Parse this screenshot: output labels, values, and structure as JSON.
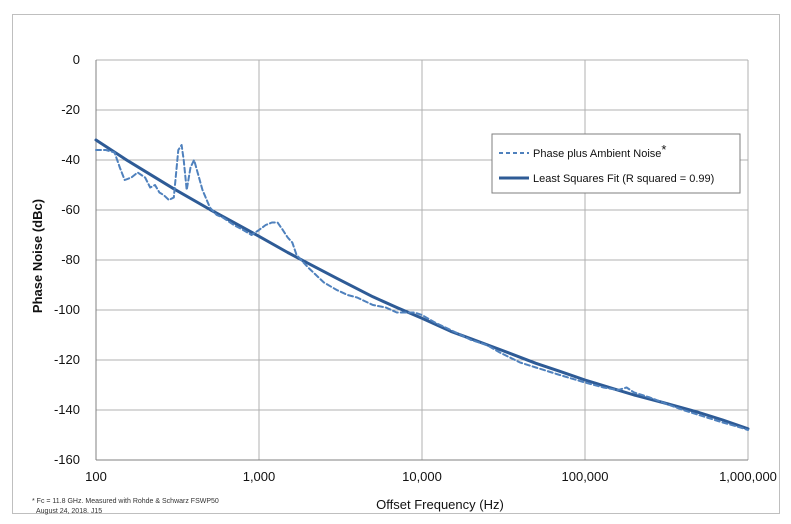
{
  "chart_data": {
    "type": "line",
    "xlabel": "Offset Frequency (Hz)",
    "ylabel": "Phase Noise (dBc)",
    "x_scale": "log",
    "xlim": [
      100,
      1000000
    ],
    "ylim": [
      -160,
      0
    ],
    "x_ticks": [
      {
        "value": 100,
        "label": "100"
      },
      {
        "value": 1000,
        "label": "1,000"
      },
      {
        "value": 10000,
        "label": "10,000"
      },
      {
        "value": 100000,
        "label": "100,000"
      },
      {
        "value": 1000000,
        "label": "1,000,000"
      }
    ],
    "y_ticks": [
      {
        "value": 0,
        "label": "0"
      },
      {
        "value": -20,
        "label": "-20"
      },
      {
        "value": -40,
        "label": "-40"
      },
      {
        "value": -60,
        "label": "-60"
      },
      {
        "value": -80,
        "label": "-80"
      },
      {
        "value": -100,
        "label": "-100"
      },
      {
        "value": -120,
        "label": "-120"
      },
      {
        "value": -140,
        "label": "-140"
      },
      {
        "value": -160,
        "label": "-160"
      }
    ],
    "grid": true,
    "legend_position": "right",
    "series": [
      {
        "name": "Phase plus Ambient Noise",
        "name_suffix": "*",
        "style": "dashed",
        "color": "#4f81bd",
        "x": [
          100,
          115,
          130,
          140,
          150,
          165,
          180,
          200,
          215,
          230,
          245,
          260,
          280,
          300,
          320,
          335,
          345,
          360,
          380,
          400,
          420,
          450,
          500,
          550,
          600,
          700,
          800,
          900,
          1000,
          1100,
          1200,
          1300,
          1400,
          1500,
          1600,
          1700,
          2000,
          2500,
          3000,
          3500,
          4000,
          5000,
          6000,
          7000,
          8000,
          9000,
          10000,
          12000,
          15000,
          20000,
          25000,
          30000,
          40000,
          50000,
          70000,
          100000,
          130000,
          160000,
          180000,
          200000,
          250000,
          300000,
          400000,
          500000,
          700000,
          900000,
          1000000
        ],
        "y": [
          -36,
          -36,
          -37,
          -43,
          -48,
          -47,
          -45,
          -47,
          -51,
          -50,
          -53,
          -54,
          -56,
          -55,
          -36,
          -34,
          -40,
          -52,
          -43,
          -40,
          -45,
          -52,
          -59,
          -62,
          -63,
          -66,
          -68,
          -70,
          -68,
          -66,
          -65,
          -65,
          -68,
          -71,
          -73,
          -78,
          -83,
          -89,
          -92,
          -94,
          -95,
          -98,
          -99,
          -101,
          -101,
          -101,
          -102,
          -105,
          -108,
          -112,
          -114,
          -117,
          -121,
          -123,
          -126,
          -129,
          -131,
          -132,
          -131,
          -133,
          -135,
          -137,
          -140,
          -142,
          -145,
          -147,
          -148
        ]
      },
      {
        "name": "Least Squares Fit (R squared = 0.99)",
        "style": "solid",
        "color": "#2e5b96",
        "x": [
          100,
          150,
          200,
          300,
          500,
          700,
          1000,
          1500,
          2000,
          3000,
          5000,
          7000,
          10000,
          15000,
          20000,
          30000,
          50000,
          70000,
          100000,
          150000,
          200000,
          300000,
          500000,
          700000,
          1000000
        ],
        "y": [
          -32,
          -39.5,
          -44.5,
          -51.5,
          -59.8,
          -65,
          -70.5,
          -77,
          -81.3,
          -87.3,
          -94.7,
          -99,
          -103.3,
          -108.5,
          -111.5,
          -115.8,
          -121.3,
          -124.5,
          -128,
          -131.5,
          -134,
          -137,
          -141,
          -144,
          -147.5
        ]
      }
    ],
    "footnote_lines": [
      "* Fc = 11.8 GHz. Measured with Rohde & Schwarz FSWP50",
      "August 24, 2018. J15"
    ]
  }
}
